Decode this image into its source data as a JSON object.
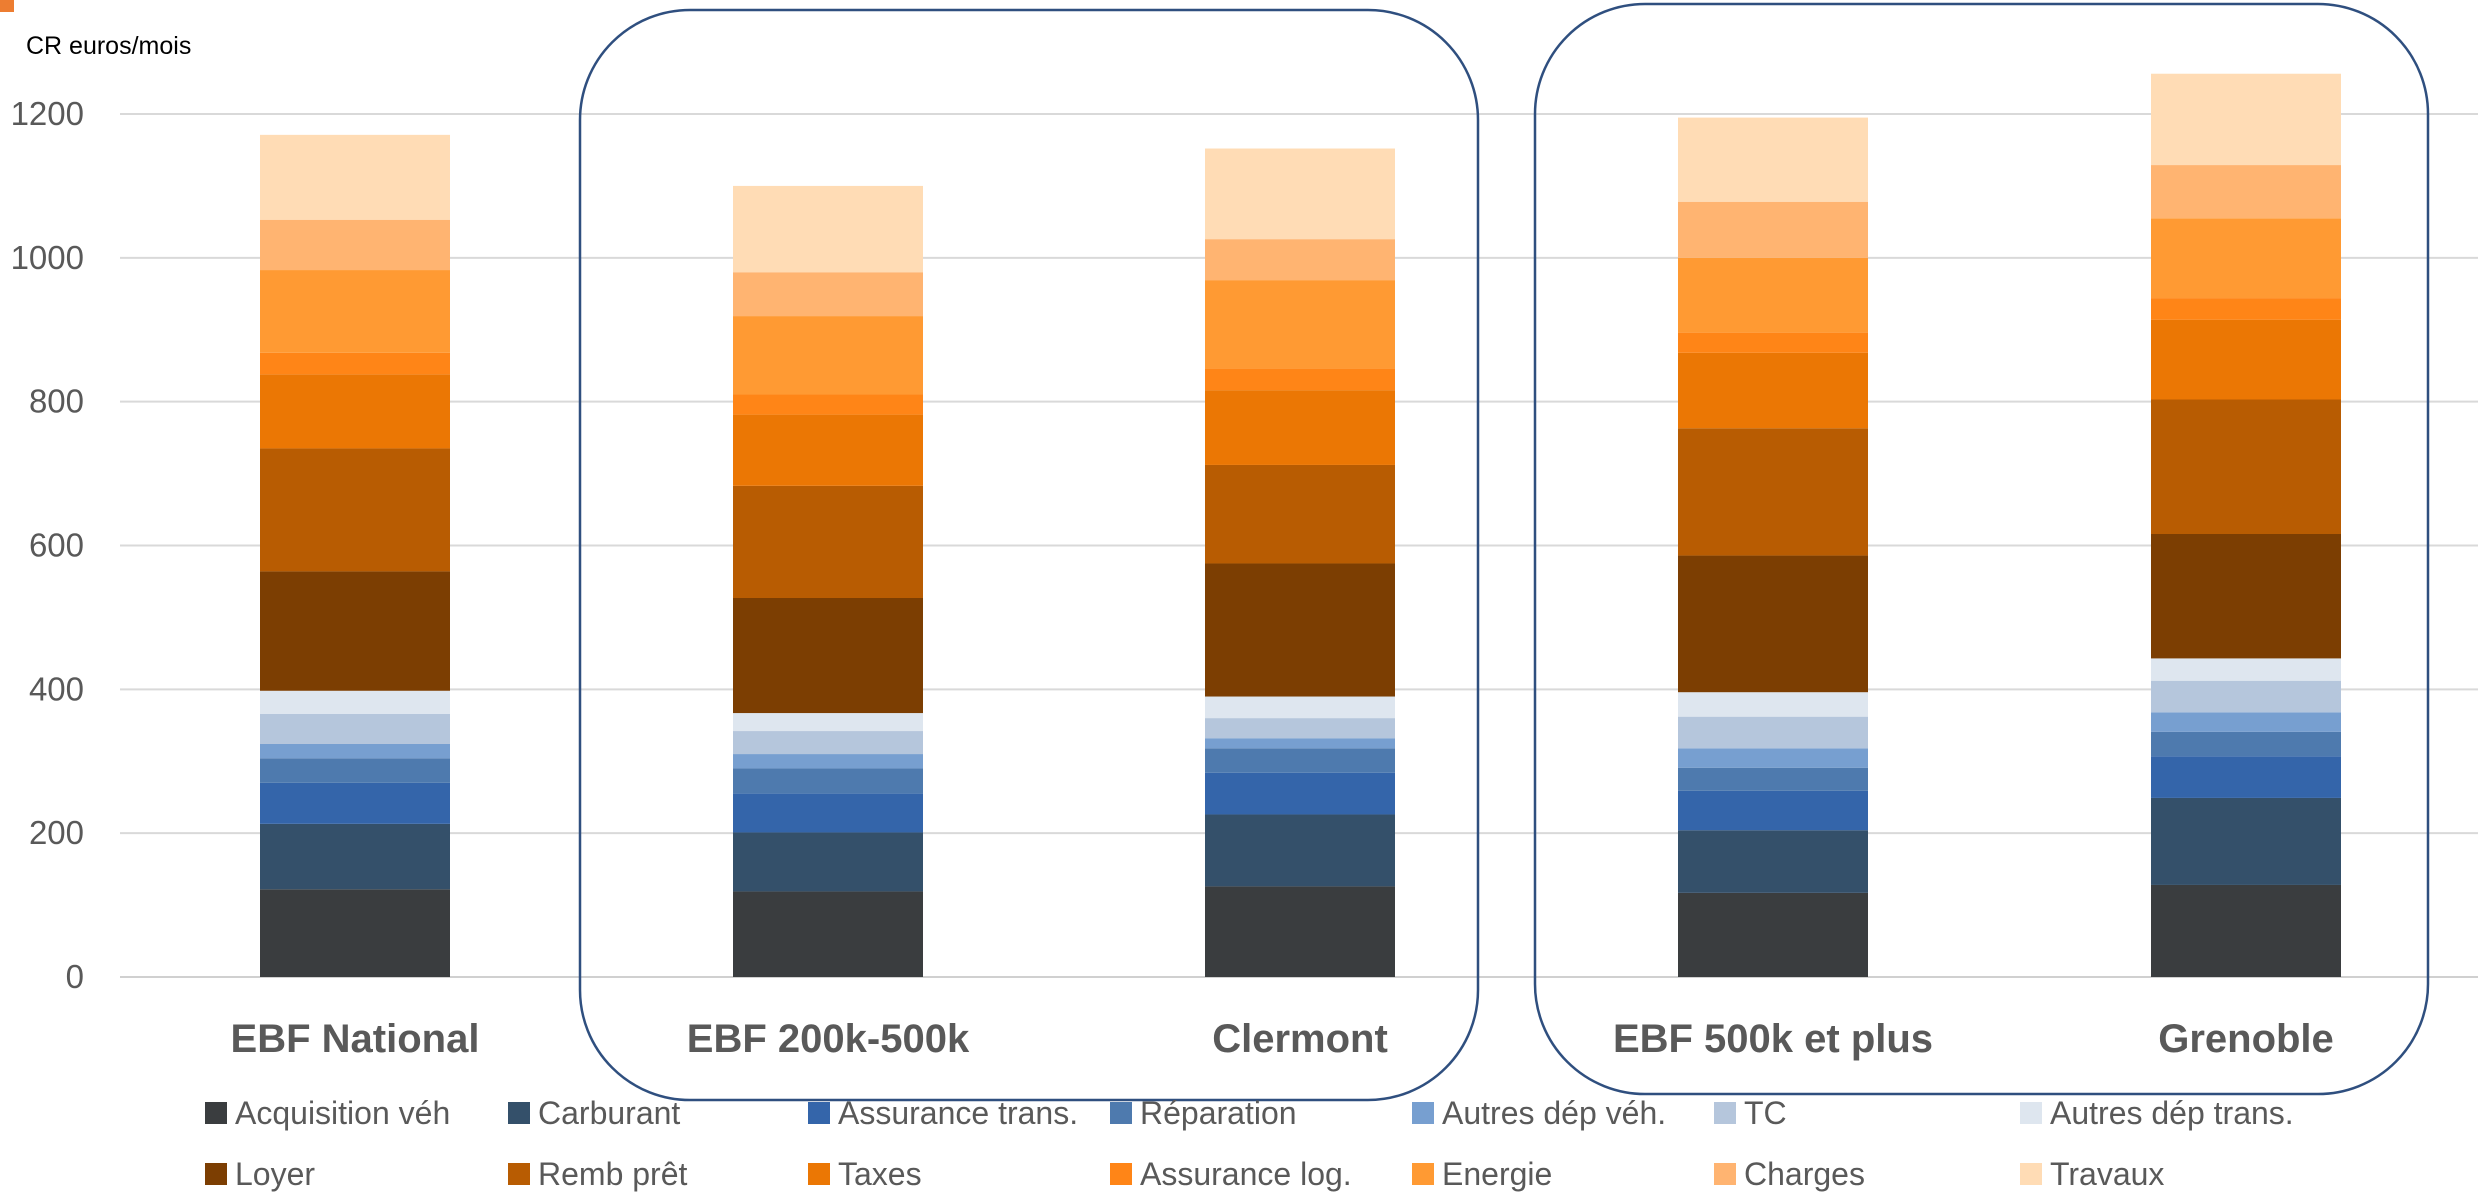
{
  "chart_data": {
    "type": "bar",
    "stacked": true,
    "ylabel": "CR  euros/mois",
    "ylim": [
      0,
      1200
    ],
    "yticks": [
      0,
      200,
      400,
      600,
      800,
      1000,
      1200
    ],
    "grid": true,
    "legend_position": "bottom",
    "categories": [
      "EBF National",
      "EBF 200k-500k",
      "Clermont",
      "EBF 500k et plus",
      "Grenoble"
    ],
    "groups": [
      {
        "members": [
          "EBF 200k-500k",
          "Clermont"
        ]
      },
      {
        "members": [
          "EBF 500k et plus",
          "Grenoble"
        ]
      }
    ],
    "series": [
      {
        "name": "Acquisition véh",
        "color": "#3A3D3F",
        "values": [
          122,
          119,
          126,
          117,
          128
        ]
      },
      {
        "name": "Carburant",
        "color": "#34506A",
        "values": [
          91,
          82,
          100,
          87,
          121
        ]
      },
      {
        "name": "Assurance trans.",
        "color": "#3465AA",
        "values": [
          57,
          54,
          58,
          55,
          58
        ]
      },
      {
        "name": "Réparation",
        "color": "#4E7AAE",
        "values": [
          34,
          35,
          34,
          32,
          34
        ]
      },
      {
        "name": "Autres dép véh.",
        "color": "#779FD0",
        "values": [
          20,
          20,
          14,
          27,
          27
        ]
      },
      {
        "name": "TC",
        "color": "#B5C6DC",
        "values": [
          42,
          32,
          28,
          44,
          44
        ]
      },
      {
        "name": "Autres dép trans.",
        "color": "#DEE6EF",
        "values": [
          32,
          25,
          30,
          34,
          31
        ]
      },
      {
        "name": "Loyer",
        "color": "#7C3E02",
        "values": [
          166,
          160,
          185,
          190,
          173
        ]
      },
      {
        "name": "Remb prêt",
        "color": "#B85C02",
        "values": [
          171,
          156,
          137,
          177,
          187
        ]
      },
      {
        "name": "Taxes",
        "color": "#EB7704",
        "values": [
          103,
          99,
          104,
          105,
          111
        ]
      },
      {
        "name": "Assurance log.",
        "color": "#FF8517",
        "values": [
          30,
          28,
          30,
          28,
          30
        ]
      },
      {
        "name": "Energie",
        "color": "#FF9A33",
        "values": [
          115,
          109,
          123,
          104,
          111
        ]
      },
      {
        "name": "Charges",
        "color": "#FFB471",
        "values": [
          70,
          61,
          57,
          78,
          74
        ]
      },
      {
        "name": "Travaux",
        "color": "#FFDCB5",
        "values": [
          118,
          120,
          126,
          117,
          127
        ]
      }
    ]
  }
}
